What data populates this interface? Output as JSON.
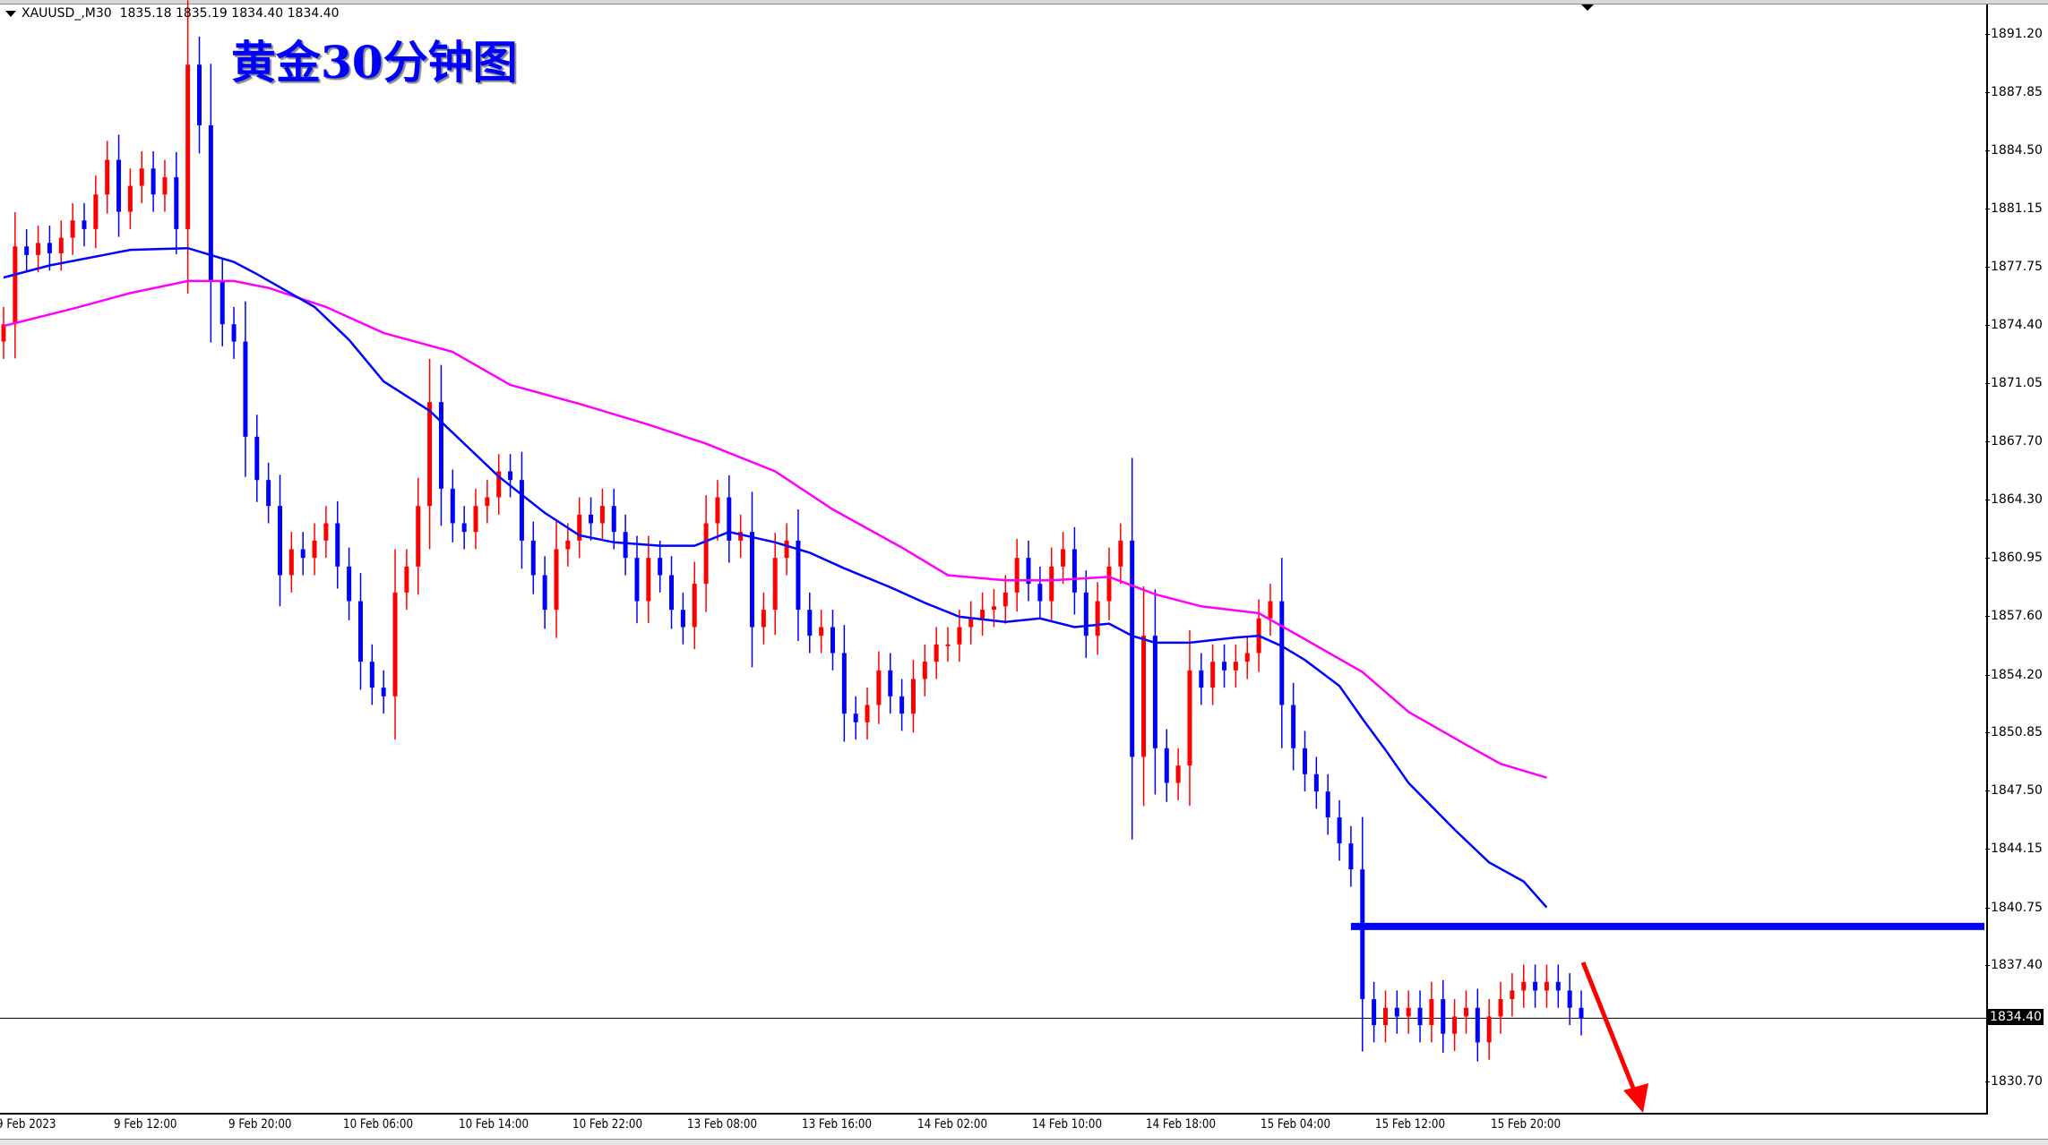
{
  "header": {
    "symbol": "XAUUSD_,M30",
    "ohlc": "1835.18 1835.19 1834.40 1834.40"
  },
  "title": "黄金30分钟图",
  "price_axis": [
    "1891.20",
    "1887.85",
    "1884.50",
    "1881.15",
    "1877.75",
    "1874.40",
    "1871.05",
    "1867.70",
    "1864.30",
    "1860.95",
    "1857.60",
    "1854.20",
    "1850.85",
    "1847.50",
    "1844.15",
    "1840.75",
    "1837.40",
    "1830.70"
  ],
  "current_price": "1834.40",
  "time_axis": [
    "9 Feb 2023",
    "9 Feb 12:00",
    "9 Feb 20:00",
    "10 Feb 06:00",
    "10 Feb 14:00",
    "10 Feb 22:00",
    "13 Feb 08:00",
    "13 Feb 16:00",
    "14 Feb 02:00",
    "14 Feb 10:00",
    "14 Feb 18:00",
    "15 Feb 04:00",
    "15 Feb 12:00",
    "15 Feb 20:00"
  ],
  "colors": {
    "up": "#ff0000",
    "down": "#0000ff",
    "ma_fast": "#0000ff",
    "ma_slow": "#ff00ff",
    "support": "#0000ff",
    "arrow": "#ff0000"
  },
  "chart_data": {
    "type": "candlestick",
    "ylim": [
      1829,
      1893
    ],
    "closes": [
      1874.5,
      1879.0,
      1878.5,
      1879.2,
      1878.6,
      1879.5,
      1880.5,
      1880.0,
      1882.0,
      1884.0,
      1881.0,
      1882.5,
      1883.5,
      1882.0,
      1883.0,
      1880.0,
      1889.5,
      1886.0,
      1877.0,
      1874.5,
      1873.5,
      1868.0,
      1865.5,
      1864.0,
      1860.0,
      1861.5,
      1861.0,
      1862.0,
      1863.0,
      1860.5,
      1858.5,
      1855.0,
      1853.5,
      1853.0,
      1859.0,
      1860.5,
      1864.0,
      1870.0,
      1865.0,
      1863.0,
      1862.5,
      1864.0,
      1864.5,
      1866.0,
      1865.5,
      1862.0,
      1860.0,
      1858.0,
      1861.5,
      1862.0,
      1863.5,
      1863.0,
      1864.0,
      1862.5,
      1861.0,
      1858.5,
      1861.0,
      1860.0,
      1858.0,
      1857.0,
      1859.5,
      1863.0,
      1864.5,
      1862.0,
      1862.5,
      1857.0,
      1858.0,
      1861.0,
      1862.0,
      1858.0,
      1856.5,
      1857.0,
      1855.5,
      1852.0,
      1851.5,
      1852.5,
      1854.5,
      1853.0,
      1852.0,
      1854.0,
      1855.0,
      1856.0,
      1856.0,
      1857.0,
      1857.5,
      1858.0,
      1858.2,
      1859.0,
      1861.0,
      1859.5,
      1858.5,
      1860.5,
      1861.5,
      1859.0,
      1856.5,
      1858.5,
      1860.5,
      1862.0,
      1849.5,
      1856.5,
      1850.0,
      1848.0,
      1849.0,
      1854.5,
      1853.5,
      1855.0,
      1854.5,
      1855.0,
      1855.5,
      1857.5,
      1858.5,
      1852.5,
      1850.0,
      1848.5,
      1847.5,
      1846.0,
      1844.5,
      1843.0,
      1835.5,
      1834.0,
      1835.0,
      1834.5,
      1835.0,
      1834.0,
      1835.5,
      1833.5,
      1834.5,
      1835.0,
      1833.0,
      1834.5,
      1835.5,
      1836.0,
      1836.5,
      1836.0,
      1836.5,
      1836.0,
      1835.0,
      1834.4
    ],
    "ma_fast": [
      [
        0,
        1877.2
      ],
      [
        4,
        1877.9
      ],
      [
        11,
        1878.8
      ],
      [
        16,
        1878.9
      ],
      [
        20,
        1878.1
      ],
      [
        22,
        1877.4
      ],
      [
        27,
        1875.5
      ],
      [
        30,
        1873.6
      ],
      [
        33,
        1871.2
      ],
      [
        37,
        1869.5
      ],
      [
        40,
        1867.6
      ],
      [
        43,
        1865.7
      ],
      [
        47,
        1863.6
      ],
      [
        50,
        1862.3
      ],
      [
        53,
        1861.9
      ],
      [
        57,
        1861.7
      ],
      [
        60,
        1861.7
      ],
      [
        63,
        1862.5
      ],
      [
        67,
        1861.9
      ],
      [
        70,
        1861.3
      ],
      [
        73,
        1860.4
      ],
      [
        77,
        1859.3
      ],
      [
        80,
        1858.4
      ],
      [
        83,
        1857.6
      ],
      [
        87,
        1857.3
      ],
      [
        90,
        1857.5
      ],
      [
        93,
        1857.0
      ],
      [
        96,
        1857.2
      ],
      [
        98,
        1856.5
      ],
      [
        100,
        1856.1
      ],
      [
        103,
        1856.1
      ],
      [
        107,
        1856.4
      ],
      [
        109,
        1856.5
      ],
      [
        111,
        1855.9
      ],
      [
        113,
        1855.1
      ],
      [
        116,
        1853.6
      ],
      [
        118,
        1851.7
      ],
      [
        120,
        1849.9
      ],
      [
        122,
        1848.0
      ],
      [
        126,
        1845.3
      ],
      [
        129,
        1843.4
      ],
      [
        132,
        1842.3
      ],
      [
        134,
        1840.8
      ]
    ],
    "ma_slow": [
      [
        0,
        1874.4
      ],
      [
        6,
        1875.4
      ],
      [
        11,
        1876.3
      ],
      [
        16,
        1877.0
      ],
      [
        20,
        1877.0
      ],
      [
        23,
        1876.6
      ],
      [
        28,
        1875.5
      ],
      [
        33,
        1874.0
      ],
      [
        39,
        1872.9
      ],
      [
        44,
        1871.0
      ],
      [
        50,
        1869.9
      ],
      [
        56,
        1868.7
      ],
      [
        61,
        1867.6
      ],
      [
        67,
        1866.0
      ],
      [
        72,
        1863.8
      ],
      [
        78,
        1861.6
      ],
      [
        82,
        1860.0
      ],
      [
        87,
        1859.7
      ],
      [
        91,
        1859.7
      ],
      [
        96,
        1859.9
      ],
      [
        100,
        1858.9
      ],
      [
        104,
        1858.2
      ],
      [
        109,
        1857.8
      ],
      [
        113,
        1856.3
      ],
      [
        118,
        1854.4
      ],
      [
        122,
        1852.1
      ],
      [
        127,
        1850.2
      ],
      [
        130,
        1849.1
      ],
      [
        134,
        1848.3
      ]
    ],
    "support_level": 1839.7,
    "support_from_index": 117
  }
}
